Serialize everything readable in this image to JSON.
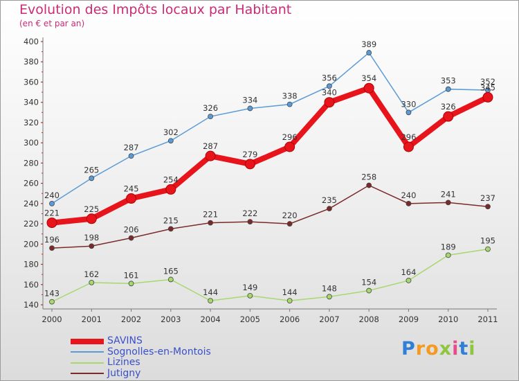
{
  "header": {
    "title": "Evolution des Impôts locaux par Habitant",
    "subtitle": "(en € et par an)"
  },
  "brand": {
    "letters": [
      "P",
      "r",
      "o",
      "x",
      "i",
      "t",
      "i"
    ],
    "colors": [
      "#2f7fd6",
      "#f59a1e",
      "#f59a1e",
      "#8fc63f",
      "#e64b8a",
      "#2f7fd6",
      "#8fc63f"
    ]
  },
  "chart_data": {
    "type": "line",
    "title": "Evolution des Impôts locaux par Habitant",
    "subtitle": "(en € et par an)",
    "x": [
      2000,
      2001,
      2002,
      2003,
      2004,
      2005,
      2006,
      2007,
      2008,
      2009,
      2010,
      2011
    ],
    "ylim": [
      140,
      400
    ],
    "yticks": [
      140,
      160,
      180,
      200,
      220,
      240,
      260,
      280,
      300,
      320,
      340,
      360,
      380,
      400
    ],
    "grid": false,
    "legend_placement": "bottom-left",
    "series": [
      {
        "name": "Sognolles-en-Montois",
        "color": "#5b9bd5",
        "values": [
          240,
          265,
          287,
          302,
          326,
          334,
          338,
          356,
          389,
          330,
          353,
          352
        ]
      },
      {
        "name": "Lizines",
        "color": "#a6d86e",
        "values": [
          143,
          162,
          161,
          165,
          144,
          149,
          144,
          148,
          154,
          164,
          189,
          195
        ]
      },
      {
        "name": "Jutigny",
        "color": "#7b2a2a",
        "values": [
          196,
          198,
          206,
          215,
          221,
          222,
          220,
          235,
          258,
          240,
          241,
          237
        ]
      },
      {
        "name": "SAVINS",
        "color": "#e8141c",
        "values": [
          221,
          225,
          245,
          254,
          287,
          279,
          296,
          340,
          354,
          296,
          326,
          345
        ]
      }
    ],
    "legend_order": [
      "SAVINS",
      "Sognolles-en-Montois",
      "Lizines",
      "Jutigny"
    ]
  }
}
